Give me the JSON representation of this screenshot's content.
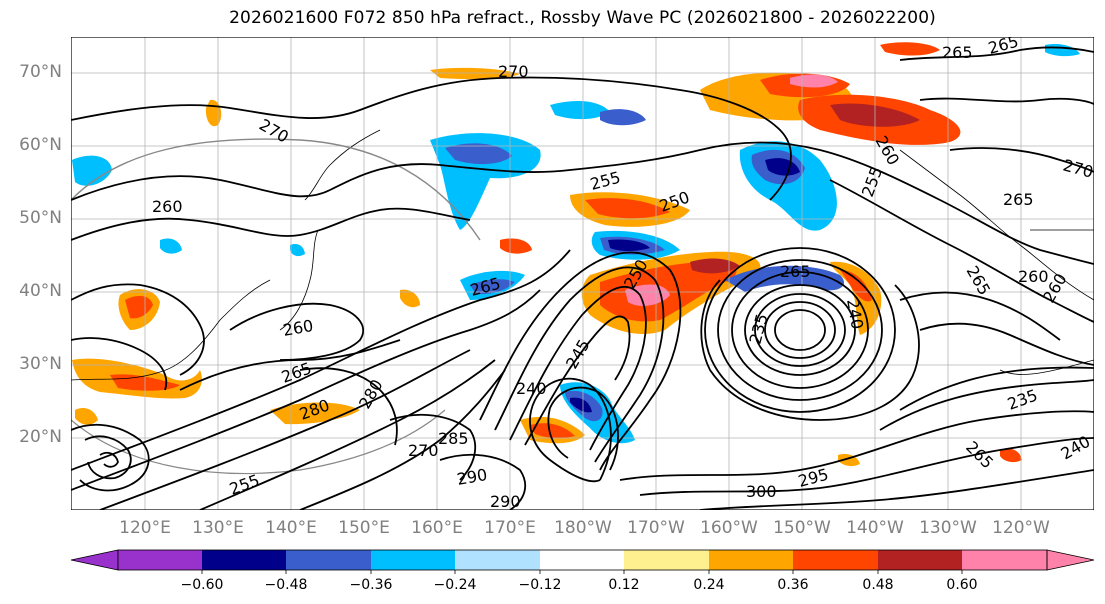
{
  "title": "2026021600 F072 850 hPa refract., Rossby Wave PC (2026021800 - 2026022200)",
  "lat_labels": [
    "70°N",
    "60°N",
    "50°N",
    "40°N",
    "30°N",
    "20°N"
  ],
  "lon_labels": [
    "120°E",
    "130°E",
    "140°E",
    "150°E",
    "160°E",
    "170°E",
    "180°W",
    "170°W",
    "160°W",
    "150°W",
    "140°W",
    "130°W",
    "120°W"
  ],
  "contour_labels": [
    "270",
    "270",
    "260",
    "265",
    "265",
    "255",
    "250",
    "265",
    "260",
    "255",
    "260",
    "265",
    "270",
    "260",
    "265",
    "270",
    "285",
    "280",
    "290",
    "290",
    "300",
    "295",
    "240",
    "245",
    "235",
    "250",
    "240",
    "265",
    "260",
    "265",
    "235",
    "240",
    "265",
    "280",
    "255"
  ],
  "colorbar": {
    "colors": [
      "#9932cc",
      "#00008b",
      "#3a5fcd",
      "#00bfff",
      "#b0e2ff",
      "#ffffff",
      "#fff08f",
      "#ffa500",
      "#ff4500",
      "#b22222",
      "#ff82ab"
    ],
    "tick_labels": [
      "−0.60",
      "−0.48",
      "−0.36",
      "−0.24",
      "−0.12",
      "0.12",
      "0.24",
      "0.36",
      "0.48",
      "0.60"
    ]
  }
}
